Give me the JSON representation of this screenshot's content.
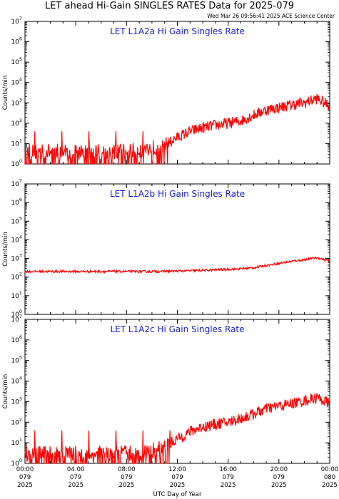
{
  "header": {
    "title": "LET ahead Hi-Gain SINGLES RATES Data for 2025-079",
    "timestamp": "Wed Mar 26 09:56:41 2025 ACE Science Center"
  },
  "colors": {
    "trace": "#ff0000",
    "panel_title": "#1a1ad6",
    "axes": "#000000"
  },
  "xaxis": {
    "label": "UTC Day of Year",
    "ticks": [
      {
        "hours": 0,
        "time": "00:00",
        "doy": "079",
        "year": "2025"
      },
      {
        "hours": 4,
        "time": "04:00",
        "doy": "079",
        "year": "2025"
      },
      {
        "hours": 8,
        "time": "08:00",
        "doy": "079",
        "year": "2025"
      },
      {
        "hours": 12,
        "time": "12:00",
        "doy": "079",
        "year": "2025"
      },
      {
        "hours": 16,
        "time": "16:00",
        "doy": "079",
        "year": "2025"
      },
      {
        "hours": 20,
        "time": "20:00",
        "doy": "079",
        "year": "2025"
      },
      {
        "hours": 24,
        "time": "00:00",
        "doy": "080",
        "year": "2025"
      }
    ]
  },
  "chart_data": [
    {
      "type": "line",
      "title": "LET L1A2a Hi Gain Singles Rate",
      "ylabel": "Counts/min",
      "yscale": "log",
      "ylim": [
        1,
        10000000
      ],
      "xlim": [
        0,
        24
      ],
      "ytick_exponents": [
        0,
        1,
        2,
        3,
        4,
        5,
        6,
        7
      ],
      "series": [
        {
          "x": [
            0,
            1,
            2,
            3,
            4,
            5,
            6,
            7,
            8,
            9,
            10,
            11,
            12,
            13,
            14,
            15,
            16,
            17,
            18,
            19,
            20,
            21,
            22,
            23,
            24
          ],
          "y": [
            4,
            4,
            4,
            4,
            4,
            4,
            4,
            4,
            4,
            5,
            6,
            8,
            20,
            40,
            60,
            80,
            100,
            130,
            250,
            450,
            600,
            800,
            1000,
            1600,
            700
          ]
        }
      ]
    },
    {
      "type": "line",
      "title": "LET L1A2b Hi Gain Singles Rate",
      "ylabel": "Counts/min",
      "yscale": "log",
      "ylim": [
        1,
        10000000
      ],
      "xlim": [
        0,
        24
      ],
      "ytick_exponents": [
        0,
        1,
        2,
        3,
        4,
        5,
        6,
        7
      ],
      "series": [
        {
          "x": [
            0,
            2,
            4,
            6,
            8,
            10,
            12,
            14,
            16,
            17,
            18,
            19,
            20,
            21,
            22,
            23,
            24
          ],
          "y": [
            200,
            200,
            200,
            200,
            200,
            200,
            210,
            230,
            260,
            280,
            320,
            420,
            550,
            700,
            850,
            1100,
            750
          ]
        }
      ]
    },
    {
      "type": "line",
      "title": "LET L1A2c Hi Gain Singles Rate",
      "ylabel": "Counts/min",
      "yscale": "log",
      "ylim": [
        1,
        10000000
      ],
      "xlim": [
        0,
        24
      ],
      "ytick_exponents": [
        0,
        1,
        2,
        3,
        4,
        5,
        6,
        7
      ],
      "series": [
        {
          "x": [
            0,
            1,
            2,
            3,
            4,
            5,
            6,
            7,
            8,
            9,
            10,
            11,
            12,
            13,
            14,
            15,
            16,
            17,
            18,
            19,
            20,
            21,
            22,
            23,
            24
          ],
          "y": [
            3,
            3,
            3,
            3,
            3,
            3,
            3,
            3,
            3,
            3,
            4,
            7,
            15,
            35,
            60,
            80,
            100,
            150,
            250,
            450,
            600,
            800,
            1100,
            1600,
            800
          ]
        }
      ]
    }
  ]
}
